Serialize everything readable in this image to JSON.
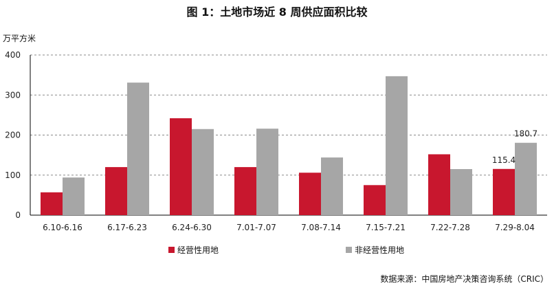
{
  "title": "图 1：土地市场近 8 周供应面积比较",
  "unit_label": "万平方米",
  "source": "数据来源：中国房地产决策咨询系统（CRIC）",
  "colors": {
    "series1": "#C8172E",
    "series2": "#A6A6A6",
    "grid": "#888888",
    "axis": "#000000"
  },
  "chart_data": {
    "type": "bar",
    "categories": [
      "6.10-6.16",
      "6.17-6.23",
      "6.24-6.30",
      "7.01-7.07",
      "7.08-7.14",
      "7.15-7.21",
      "7.22-7.28",
      "7.29-8.04"
    ],
    "series": [
      {
        "name": "经营性用地",
        "values": [
          57,
          120,
          242,
          120,
          106,
          75,
          152,
          115.4
        ]
      },
      {
        "name": "非经营性用地",
        "values": [
          94,
          331,
          215,
          216,
          144,
          347,
          115,
          180.7
        ]
      }
    ],
    "data_labels": [
      {
        "series": 0,
        "index": 7,
        "text": "115.4"
      },
      {
        "series": 1,
        "index": 7,
        "text": "180.7"
      }
    ],
    "ylim": [
      0,
      400
    ],
    "yticks": [
      "0",
      "100",
      "200",
      "300",
      "400"
    ],
    "grid": "dashed-horizontal",
    "legend_position": "bottom"
  }
}
